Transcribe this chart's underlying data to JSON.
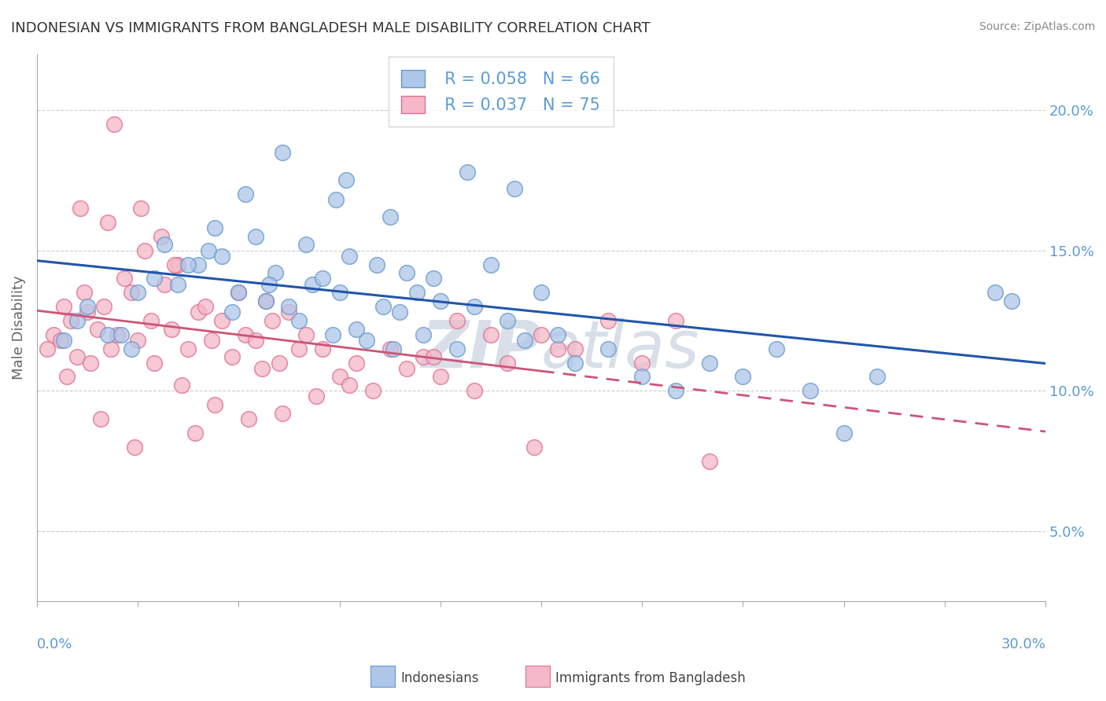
{
  "title": "INDONESIAN VS IMMIGRANTS FROM BANGLADESH MALE DISABILITY CORRELATION CHART",
  "source": "Source: ZipAtlas.com",
  "ylabel": "Male Disability",
  "y_ticks": [
    5.0,
    10.0,
    15.0,
    20.0
  ],
  "x_range": [
    0.0,
    30.0
  ],
  "y_range": [
    2.5,
    22.0
  ],
  "indonesians": {
    "R": 0.058,
    "N": 66,
    "color": "#aec6e8",
    "edge_color": "#6699cc",
    "label": "Indonesians"
  },
  "bangladesh": {
    "R": 0.037,
    "N": 75,
    "color": "#f4b8c8",
    "edge_color": "#e07090",
    "label": "Immigrants from Bangladesh"
  },
  "trend_blue": "#2255aa",
  "trend_pink": "#cc5577",
  "watermark_color": "#d8dfe8",
  "background_color": "#ffffff",
  "grid_color": "#cccccc",
  "title_color": "#333333",
  "axis_label_color": "#5b9bd5",
  "legend_R_N_color": "#5b9bd5",
  "indo_x": [
    1.2,
    0.8,
    1.5,
    2.1,
    3.0,
    2.8,
    3.5,
    4.2,
    4.8,
    5.1,
    5.5,
    6.0,
    5.8,
    6.5,
    6.8,
    7.1,
    7.5,
    7.8,
    8.2,
    8.0,
    8.5,
    8.8,
    9.0,
    9.3,
    9.5,
    9.8,
    10.1,
    10.3,
    10.6,
    10.8,
    11.0,
    11.3,
    11.5,
    11.8,
    12.0,
    12.5,
    13.0,
    13.5,
    14.0,
    14.5,
    15.0,
    15.5,
    16.0,
    17.0,
    18.0,
    19.0,
    20.0,
    21.0,
    22.0,
    23.0,
    24.0,
    25.0,
    9.2,
    6.2,
    7.3,
    8.9,
    10.5,
    12.8,
    14.2,
    5.3,
    3.8,
    2.5,
    4.5,
    6.9,
    28.5,
    29.0
  ],
  "indo_y": [
    12.5,
    11.8,
    13.0,
    12.0,
    13.5,
    11.5,
    14.0,
    13.8,
    14.5,
    15.0,
    14.8,
    13.5,
    12.8,
    15.5,
    13.2,
    14.2,
    13.0,
    12.5,
    13.8,
    15.2,
    14.0,
    12.0,
    13.5,
    14.8,
    12.2,
    11.8,
    14.5,
    13.0,
    11.5,
    12.8,
    14.2,
    13.5,
    12.0,
    14.0,
    13.2,
    11.5,
    13.0,
    14.5,
    12.5,
    11.8,
    13.5,
    12.0,
    11.0,
    11.5,
    10.5,
    10.0,
    11.0,
    10.5,
    11.5,
    10.0,
    8.5,
    10.5,
    17.5,
    17.0,
    18.5,
    16.8,
    16.2,
    17.8,
    17.2,
    15.8,
    15.2,
    12.0,
    14.5,
    13.8,
    13.5,
    13.2
  ],
  "bang_x": [
    0.3,
    0.5,
    0.7,
    0.8,
    1.0,
    1.2,
    1.4,
    1.5,
    1.6,
    1.8,
    2.0,
    2.2,
    2.4,
    2.6,
    2.8,
    3.0,
    3.2,
    3.4,
    3.5,
    3.8,
    4.0,
    4.2,
    4.5,
    4.8,
    5.0,
    5.2,
    5.5,
    5.8,
    6.0,
    6.2,
    6.5,
    6.8,
    7.0,
    7.2,
    7.5,
    7.8,
    8.0,
    8.5,
    9.0,
    9.5,
    10.0,
    10.5,
    11.0,
    11.5,
    12.0,
    13.0,
    14.0,
    15.0,
    16.0,
    17.0,
    18.0,
    19.0,
    20.0,
    1.3,
    2.3,
    3.7,
    4.3,
    5.3,
    6.3,
    7.3,
    8.3,
    9.3,
    2.1,
    3.1,
    4.1,
    15.5,
    13.5,
    12.5,
    14.8,
    11.8,
    0.9,
    1.9,
    2.9,
    6.7,
    4.7
  ],
  "bang_y": [
    11.5,
    12.0,
    11.8,
    13.0,
    12.5,
    11.2,
    13.5,
    12.8,
    11.0,
    12.2,
    13.0,
    11.5,
    12.0,
    14.0,
    13.5,
    11.8,
    15.0,
    12.5,
    11.0,
    13.8,
    12.2,
    14.5,
    11.5,
    12.8,
    13.0,
    11.8,
    12.5,
    11.2,
    13.5,
    12.0,
    11.8,
    13.2,
    12.5,
    11.0,
    12.8,
    11.5,
    12.0,
    11.5,
    10.5,
    11.0,
    10.0,
    11.5,
    10.8,
    11.2,
    10.5,
    10.0,
    11.0,
    12.0,
    11.5,
    12.5,
    11.0,
    12.5,
    7.5,
    16.5,
    19.5,
    15.5,
    10.2,
    9.5,
    9.0,
    9.2,
    9.8,
    10.2,
    16.0,
    16.5,
    14.5,
    11.5,
    12.0,
    12.5,
    8.0,
    11.2,
    10.5,
    9.0,
    8.0,
    10.8,
    8.5
  ]
}
